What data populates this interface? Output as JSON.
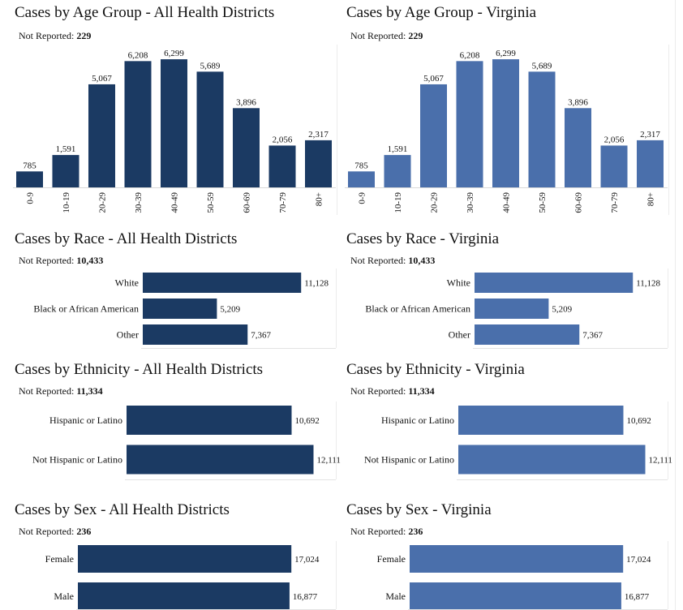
{
  "colors": {
    "dark": "#1b3a63",
    "light": "#4a6fab"
  },
  "not_reported_label": "Not Reported:",
  "panels": [
    {
      "id": "age-all",
      "title": "Cases by Age Group - All Health Districts",
      "not_reported": "229"
    },
    {
      "id": "age-va",
      "title": "Cases by Age Group - Virginia",
      "not_reported": "229"
    },
    {
      "id": "race-all",
      "title": "Cases by Race - All Health Districts",
      "not_reported": "10,433"
    },
    {
      "id": "race-va",
      "title": "Cases by Race - Virginia",
      "not_reported": "10,433"
    },
    {
      "id": "eth-all",
      "title": "Cases by Ethnicity - All Health Districts",
      "not_reported": "11,334"
    },
    {
      "id": "eth-va",
      "title": "Cases by Ethnicity - Virginia",
      "not_reported": "11,334"
    },
    {
      "id": "sex-all",
      "title": "Cases by Sex - All Health Districts",
      "not_reported": "236"
    },
    {
      "id": "sex-va",
      "title": "Cases by Sex - Virginia",
      "not_reported": "236"
    }
  ],
  "chart_data": [
    {
      "type": "bar",
      "title": "Cases by Age Group - All Health Districts",
      "categories": [
        "0-9",
        "10-19",
        "20-29",
        "30-39",
        "40-49",
        "50-59",
        "60-69",
        "70-79",
        "80+"
      ],
      "values": [
        785,
        1591,
        5067,
        6208,
        6299,
        5689,
        3896,
        2056,
        2317
      ],
      "labels": [
        "785",
        "1,591",
        "5,067",
        "6,208",
        "6,299",
        "5,689",
        "3,896",
        "2,056",
        "2,317"
      ],
      "ylim": [
        0,
        6700
      ]
    },
    {
      "type": "bar",
      "title": "Cases by Age Group - Virginia",
      "categories": [
        "0-9",
        "10-19",
        "20-29",
        "30-39",
        "40-49",
        "50-59",
        "60-69",
        "70-79",
        "80+"
      ],
      "values": [
        785,
        1591,
        5067,
        6208,
        6299,
        5689,
        3896,
        2056,
        2317
      ],
      "labels": [
        "785",
        "1,591",
        "5,067",
        "6,208",
        "6,299",
        "5,689",
        "3,896",
        "2,056",
        "2,317"
      ],
      "ylim": [
        0,
        6700
      ]
    },
    {
      "type": "bar",
      "orientation": "horizontal",
      "title": "Cases by Race - All Health Districts",
      "categories": [
        "White",
        "Black or African American",
        "Other"
      ],
      "values": [
        11128,
        5209,
        7367
      ],
      "labels": [
        "11,128",
        "5,209",
        "7,367"
      ],
      "xlim": [
        0,
        11400
      ]
    },
    {
      "type": "bar",
      "orientation": "horizontal",
      "title": "Cases by Race - Virginia",
      "categories": [
        "White",
        "Black or African American",
        "Other"
      ],
      "values": [
        11128,
        5209,
        7367
      ],
      "labels": [
        "11,128",
        "5,209",
        "7,367"
      ],
      "xlim": [
        0,
        11400
      ]
    },
    {
      "type": "bar",
      "orientation": "horizontal",
      "title": "Cases by Ethnicity - All Health Districts",
      "categories": [
        "Hispanic or Latino",
        "Not Hispanic or Latino"
      ],
      "values": [
        10692,
        12111
      ],
      "labels": [
        "10,692",
        "12,111"
      ],
      "xlim": [
        0,
        12400
      ]
    },
    {
      "type": "bar",
      "orientation": "horizontal",
      "title": "Cases by Ethnicity - Virginia",
      "categories": [
        "Hispanic or Latino",
        "Not Hispanic or Latino"
      ],
      "values": [
        10692,
        12111
      ],
      "labels": [
        "10,692",
        "12,111"
      ],
      "xlim": [
        0,
        12400
      ]
    },
    {
      "type": "bar",
      "orientation": "horizontal",
      "title": "Cases by Sex - All Health Districts",
      "categories": [
        "Female",
        "Male"
      ],
      "values": [
        17024,
        16877
      ],
      "labels": [
        "17,024",
        "16,877"
      ],
      "xlim": [
        0,
        17400
      ]
    },
    {
      "type": "bar",
      "orientation": "horizontal",
      "title": "Cases by Sex - Virginia",
      "categories": [
        "Female",
        "Male"
      ],
      "values": [
        17024,
        16877
      ],
      "labels": [
        "17,024",
        "16,877"
      ],
      "xlim": [
        0,
        17400
      ]
    }
  ]
}
